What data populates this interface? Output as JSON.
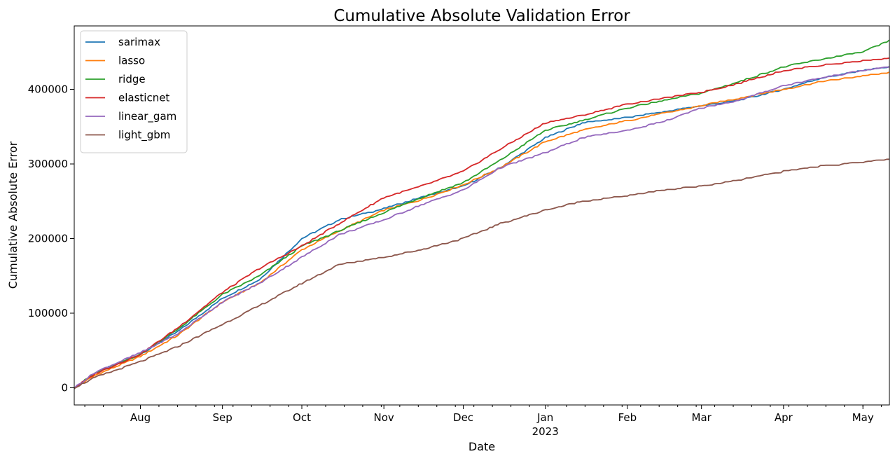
{
  "chart_data": {
    "type": "line",
    "title": "Cumulative Absolute Validation Error",
    "xlabel": "Date",
    "ylabel": "Cumulative Absolute Error",
    "xlim": [
      "2022-07-07",
      "2023-05-11"
    ],
    "ylim": [
      -23000,
      485000
    ],
    "y_ticks": [
      0,
      100000,
      200000,
      300000,
      400000
    ],
    "y_tick_labels": [
      "0",
      "100000",
      "200000",
      "300000",
      "400000"
    ],
    "x_ticks": [
      "2022-08-01",
      "2022-09-01",
      "2022-10-01",
      "2022-11-01",
      "2022-12-01",
      "2023-01-01",
      "2023-02-01",
      "2023-03-01",
      "2023-04-01",
      "2023-05-01"
    ],
    "x_tick_labels": [
      "Aug",
      "Sep",
      "Oct",
      "Nov",
      "Dec",
      "Jan",
      "Feb",
      "Mar",
      "Apr",
      "May"
    ],
    "x_year_label": "2023",
    "grid": false,
    "legend_position": "top-left",
    "series": [
      {
        "name": "sarimax",
        "color": "#1f77b4",
        "x": [
          "2022-07-07",
          "2022-07-15",
          "2022-08-01",
          "2022-08-15",
          "2022-09-01",
          "2022-09-15",
          "2022-10-01",
          "2022-10-15",
          "2022-11-01",
          "2022-11-15",
          "2022-12-01",
          "2022-12-15",
          "2023-01-01",
          "2023-01-15",
          "2023-02-01",
          "2023-02-15",
          "2023-03-01",
          "2023-03-15",
          "2023-04-01",
          "2023-04-15",
          "2023-05-01",
          "2023-05-11"
        ],
        "values": [
          0,
          20000,
          45000,
          75000,
          120000,
          145000,
          200000,
          225000,
          240000,
          255000,
          270000,
          295000,
          335000,
          355000,
          362000,
          370000,
          378000,
          385000,
          400000,
          415000,
          425000,
          430000
        ]
      },
      {
        "name": "lasso",
        "color": "#ff7f0e",
        "x": [
          "2022-07-07",
          "2022-07-15",
          "2022-08-01",
          "2022-08-15",
          "2022-09-01",
          "2022-09-15",
          "2022-10-01",
          "2022-10-15",
          "2022-11-01",
          "2022-11-15",
          "2022-12-01",
          "2022-12-15",
          "2023-01-01",
          "2023-01-15",
          "2023-02-01",
          "2023-02-15",
          "2023-03-01",
          "2023-03-15",
          "2023-04-01",
          "2023-04-15",
          "2023-05-01",
          "2023-05-11"
        ],
        "values": [
          0,
          17000,
          42000,
          70000,
          115000,
          140000,
          185000,
          210000,
          238000,
          252000,
          272000,
          295000,
          330000,
          345000,
          358000,
          368000,
          378000,
          388000,
          400000,
          410000,
          418000,
          422000
        ]
      },
      {
        "name": "ridge",
        "color": "#2ca02c",
        "x": [
          "2022-07-07",
          "2022-07-15",
          "2022-08-01",
          "2022-08-15",
          "2022-09-01",
          "2022-09-15",
          "2022-10-01",
          "2022-10-15",
          "2022-11-01",
          "2022-11-15",
          "2022-12-01",
          "2022-12-15",
          "2023-01-01",
          "2023-01-15",
          "2023-02-01",
          "2023-02-15",
          "2023-03-01",
          "2023-03-15",
          "2023-04-01",
          "2023-04-15",
          "2023-05-01",
          "2023-05-11"
        ],
        "values": [
          0,
          20000,
          45000,
          78000,
          125000,
          150000,
          190000,
          210000,
          235000,
          255000,
          275000,
          305000,
          345000,
          358000,
          375000,
          385000,
          395000,
          410000,
          430000,
          440000,
          450000,
          465000
        ]
      },
      {
        "name": "elasticnet",
        "color": "#d62728",
        "x": [
          "2022-07-07",
          "2022-07-15",
          "2022-08-01",
          "2022-08-15",
          "2022-09-01",
          "2022-09-15",
          "2022-10-01",
          "2022-10-15",
          "2022-11-01",
          "2022-11-15",
          "2022-12-01",
          "2022-12-15",
          "2023-01-01",
          "2023-01-15",
          "2023-02-01",
          "2023-02-15",
          "2023-03-01",
          "2023-03-15",
          "2023-04-01",
          "2023-04-15",
          "2023-05-01",
          "2023-05-11"
        ],
        "values": [
          0,
          19000,
          45000,
          80000,
          128000,
          160000,
          190000,
          220000,
          255000,
          270000,
          290000,
          320000,
          355000,
          365000,
          380000,
          388000,
          396000,
          408000,
          425000,
          432000,
          438000,
          441000
        ]
      },
      {
        "name": "linear_gam",
        "color": "#9467bd",
        "x": [
          "2022-07-07",
          "2022-07-15",
          "2022-08-01",
          "2022-08-15",
          "2022-09-01",
          "2022-09-15",
          "2022-10-01",
          "2022-10-15",
          "2022-11-01",
          "2022-11-15",
          "2022-12-01",
          "2022-12-15",
          "2023-01-01",
          "2023-01-15",
          "2023-02-01",
          "2023-02-15",
          "2023-03-01",
          "2023-03-15",
          "2023-04-01",
          "2023-04-15",
          "2023-05-01",
          "2023-05-11"
        ],
        "values": [
          0,
          21000,
          47000,
          72000,
          115000,
          140000,
          175000,
          205000,
          225000,
          245000,
          265000,
          295000,
          315000,
          335000,
          345000,
          357000,
          375000,
          385000,
          405000,
          415000,
          425000,
          430000
        ]
      },
      {
        "name": "light_gbm",
        "color": "#8c564b",
        "x": [
          "2022-07-07",
          "2022-07-15",
          "2022-08-01",
          "2022-08-15",
          "2022-09-01",
          "2022-09-15",
          "2022-10-01",
          "2022-10-15",
          "2022-11-01",
          "2022-11-15",
          "2022-12-01",
          "2022-12-15",
          "2023-01-01",
          "2023-01-15",
          "2023-02-01",
          "2023-02-15",
          "2023-03-01",
          "2023-03-15",
          "2023-04-01",
          "2023-04-15",
          "2023-05-01",
          "2023-05-11"
        ],
        "values": [
          0,
          14000,
          35000,
          55000,
          85000,
          110000,
          140000,
          165000,
          175000,
          185000,
          200000,
          220000,
          238000,
          250000,
          257000,
          265000,
          270000,
          278000,
          290000,
          297000,
          302000,
          306000
        ]
      }
    ]
  }
}
